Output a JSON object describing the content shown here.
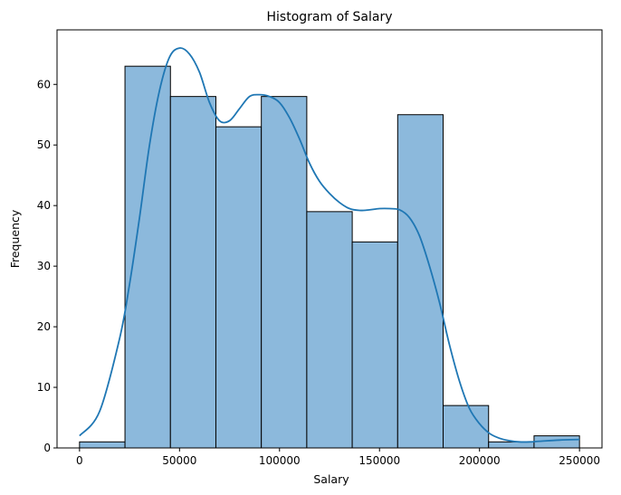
{
  "chart_data": {
    "type": "bar",
    "title": "Histogram of Salary",
    "xlabel": "Salary",
    "ylabel": "Frequency",
    "xlim": [
      -11250,
      261250
    ],
    "ylim": [
      0,
      69
    ],
    "xticks": [
      0,
      50000,
      100000,
      150000,
      200000,
      250000
    ],
    "xtick_labels": [
      "0",
      "50000",
      "100000",
      "150000",
      "200000",
      "250000"
    ],
    "yticks": [
      0,
      10,
      20,
      30,
      40,
      50,
      60
    ],
    "ytick_labels": [
      "0",
      "10",
      "20",
      "30",
      "40",
      "50",
      "60"
    ],
    "bins": [
      {
        "x0": 0,
        "x1": 22727,
        "value": 1
      },
      {
        "x0": 22727,
        "x1": 45455,
        "value": 63
      },
      {
        "x0": 45455,
        "x1": 68182,
        "value": 58
      },
      {
        "x0": 68182,
        "x1": 90909,
        "value": 53
      },
      {
        "x0": 90909,
        "x1": 113636,
        "value": 58
      },
      {
        "x0": 113636,
        "x1": 136364,
        "value": 39
      },
      {
        "x0": 136364,
        "x1": 159091,
        "value": 34
      },
      {
        "x0": 159091,
        "x1": 181818,
        "value": 55
      },
      {
        "x0": 181818,
        "x1": 204545,
        "value": 7
      },
      {
        "x0": 204545,
        "x1": 227273,
        "value": 1
      },
      {
        "x0": 227273,
        "x1": 250000,
        "value": 2
      }
    ],
    "kde": {
      "x": [
        0,
        10000,
        20000,
        25000,
        30000,
        35000,
        40000,
        45000,
        50000,
        55000,
        60000,
        65000,
        70000,
        75000,
        80000,
        85000,
        90000,
        95000,
        100000,
        105000,
        110000,
        115000,
        120000,
        125000,
        130000,
        135000,
        140000,
        145000,
        150000,
        155000,
        160000,
        165000,
        170000,
        175000,
        180000,
        185000,
        190000,
        195000,
        200000,
        205000,
        210000,
        215000,
        220000,
        225000,
        230000,
        240000,
        250000
      ],
      "y": [
        2,
        6,
        18,
        27,
        38,
        50,
        59,
        64.5,
        66,
        65,
        62,
        57,
        54,
        54,
        56,
        58,
        58.3,
        58,
        57,
        54.5,
        51,
        47,
        44,
        42,
        40.5,
        39.5,
        39.2,
        39.3,
        39.5,
        39.5,
        39.3,
        38,
        35,
        30,
        24,
        17,
        11,
        6.5,
        4,
        2.4,
        1.6,
        1.2,
        1.0,
        1.0,
        1.1,
        1.3,
        1.4
      ]
    },
    "colors": {
      "bar_fill": "#8cb9dc",
      "bar_edge": "#000000",
      "kde_line": "#1f77b4"
    },
    "grid": false,
    "legend": "none"
  }
}
